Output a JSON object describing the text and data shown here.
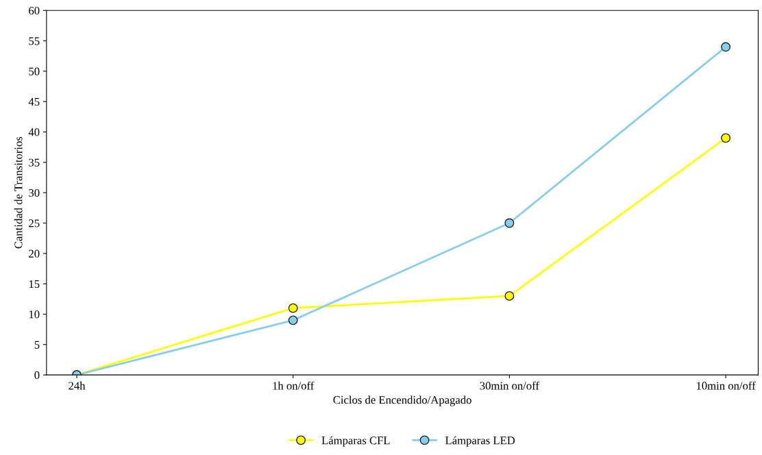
{
  "chart_data": {
    "type": "line",
    "xlabel": "Ciclos de Encendido/Apagado",
    "ylabel": "Cantidad de Transitorios",
    "categories": [
      "24h",
      "1h on/off",
      "30min on/off",
      "10min on/off"
    ],
    "series": [
      {
        "name": "Lámparas CFL",
        "color": "#ffff00",
        "values": [
          0,
          11,
          13,
          39
        ]
      },
      {
        "name": "Lámparas LED",
        "color": "#87ceeb",
        "values": [
          0,
          9,
          25,
          54
        ]
      }
    ],
    "ylim": [
      0,
      60
    ],
    "yticks": [
      0,
      5,
      10,
      15,
      20,
      25,
      30,
      35,
      40,
      45,
      50,
      55,
      60
    ],
    "grid": false,
    "legend": "bottom",
    "marker": "circle",
    "line_style": "solid"
  }
}
